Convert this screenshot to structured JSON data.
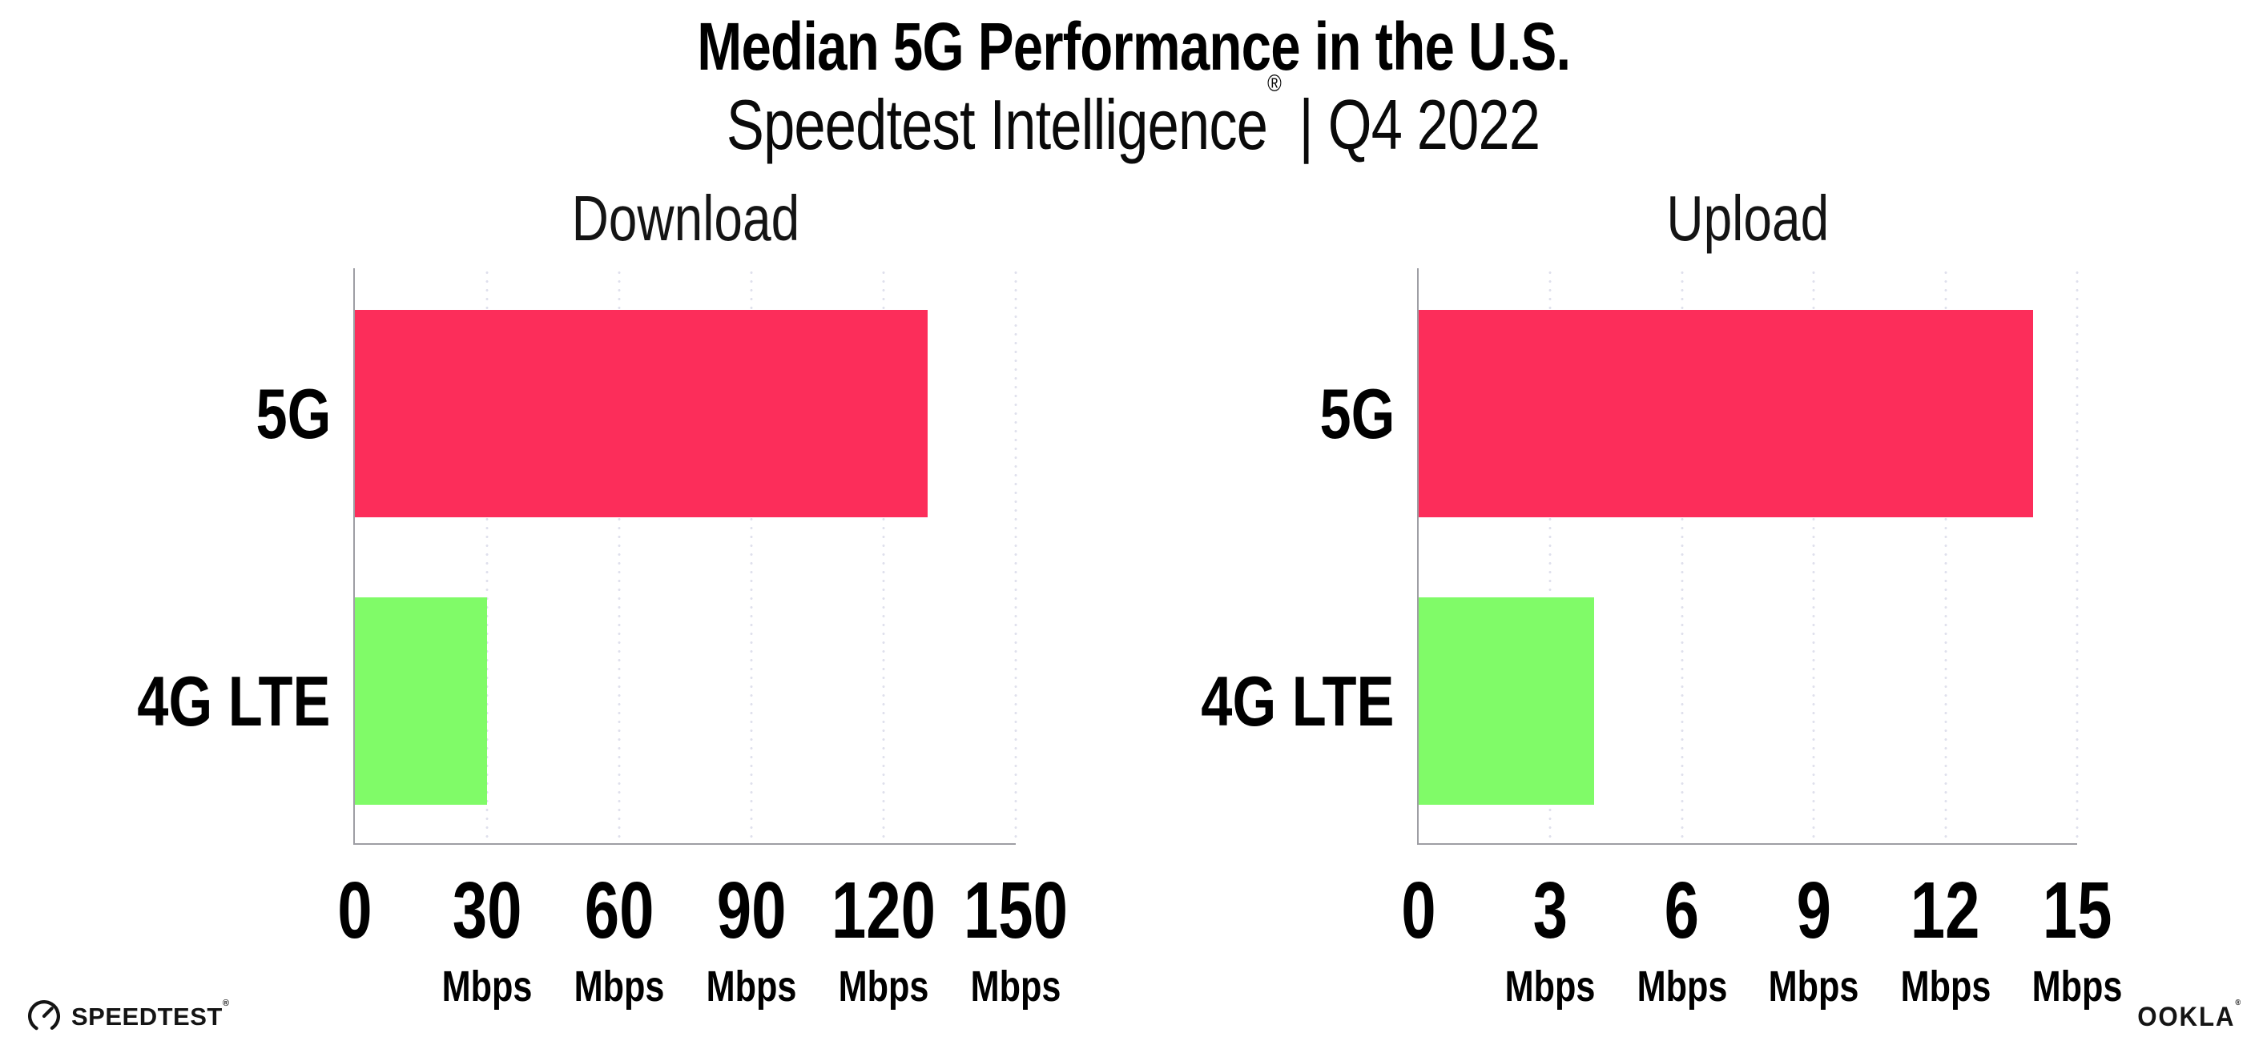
{
  "header": {
    "title": "Median 5G Performance in the U.S.",
    "subtitle_brand": "Speedtest Intelligence",
    "subtitle_reg": "®",
    "subtitle_rest": "| Q4 2022"
  },
  "colors": {
    "bar_5g_pink": "#FC2D5A",
    "bar_4g_green": "#80FB68",
    "axis_gray": "#9E9EA4",
    "gridline_lavender": "#DFE0EC"
  },
  "chart_data": [
    {
      "type": "bar",
      "orientation": "horizontal",
      "title": "Download",
      "categories": [
        "5G",
        "4G LTE"
      ],
      "values": [
        130,
        30
      ],
      "value_unit": "Mbps",
      "bar_colors": [
        "#FC2D5A",
        "#80FB68"
      ],
      "xlim": [
        0,
        150
      ],
      "x_ticks": [
        {
          "label": "0",
          "value": 0,
          "unit": ""
        },
        {
          "label": "30",
          "value": 30,
          "unit": "Mbps"
        },
        {
          "label": "60",
          "value": 60,
          "unit": "Mbps"
        },
        {
          "label": "90",
          "value": 90,
          "unit": "Mbps"
        },
        {
          "label": "120",
          "value": 120,
          "unit": "Mbps"
        },
        {
          "label": "150",
          "value": 150,
          "unit": "Mbps"
        }
      ],
      "grid": "dotted-vertical",
      "legend_position": "none"
    },
    {
      "type": "bar",
      "orientation": "horizontal",
      "title": "Upload",
      "categories": [
        "5G",
        "4G LTE"
      ],
      "values": [
        14,
        4
      ],
      "value_unit": "Mbps",
      "bar_colors": [
        "#FC2D5A",
        "#80FB68"
      ],
      "xlim": [
        0,
        15
      ],
      "x_ticks": [
        {
          "label": "0",
          "value": 0,
          "unit": ""
        },
        {
          "label": "3",
          "value": 3,
          "unit": "Mbps"
        },
        {
          "label": "6",
          "value": 6,
          "unit": "Mbps"
        },
        {
          "label": "9",
          "value": 9,
          "unit": "Mbps"
        },
        {
          "label": "12",
          "value": 12,
          "unit": "Mbps"
        },
        {
          "label": "15",
          "value": 15,
          "unit": "Mbps"
        }
      ],
      "grid": "dotted-vertical",
      "legend_position": "none"
    }
  ],
  "footer": {
    "speedtest_label": "SPEEDTEST",
    "speedtest_reg": "®",
    "ookla_label": "OOKLA",
    "ookla_reg": "®"
  }
}
